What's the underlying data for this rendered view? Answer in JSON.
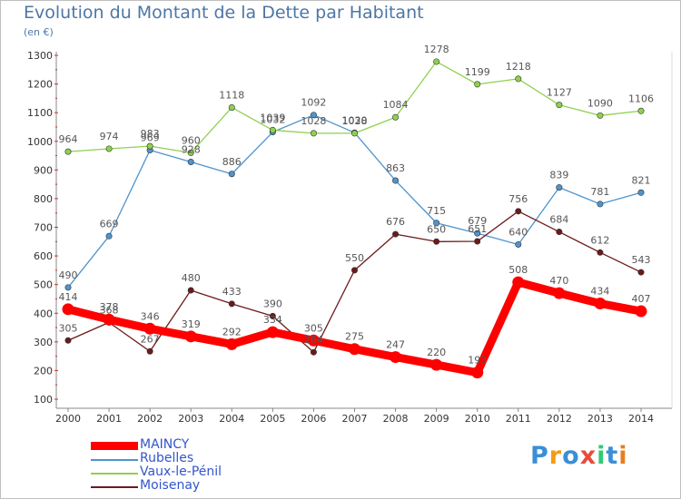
{
  "header": {
    "title": "Evolution du Montant de la Dette par Habitant",
    "subtitle": "(en €)"
  },
  "brand": {
    "letters": [
      "P",
      "r",
      "o",
      "x",
      "i",
      "t",
      "i"
    ],
    "colors": [
      "#3a8fd6",
      "#f39c12",
      "#3a8fd6",
      "#e74c3c",
      "#2ecc71",
      "#3a8fd6",
      "#e67e22"
    ]
  },
  "chart_data": {
    "type": "line",
    "x": [
      "2000",
      "2001",
      "2002",
      "2003",
      "2004",
      "2005",
      "2006",
      "2007",
      "2008",
      "2009",
      "2010",
      "2011",
      "2012",
      "2013",
      "2014"
    ],
    "ylim": [
      100,
      1300
    ],
    "yticks": [
      100,
      200,
      300,
      400,
      500,
      600,
      700,
      800,
      900,
      1000,
      1100,
      1200,
      1300
    ],
    "grid": false,
    "legend_position": "bottom-left",
    "series": [
      {
        "name": "MAINCY",
        "color": "#ff0000",
        "values": [
          414,
          378,
          346,
          319,
          292,
          334,
          305,
          275,
          247,
          220,
          193,
          508,
          470,
          434,
          407
        ]
      },
      {
        "name": "Rubelles",
        "color": "#4f94cd",
        "values": [
          490,
          669,
          969,
          928,
          886,
          1032,
          1092,
          1030,
          863,
          715,
          679,
          640,
          839,
          781,
          821
        ]
      },
      {
        "name": "Vaux-le-Pénil",
        "color": "#8fd14f",
        "values": [
          964,
          974,
          983,
          960,
          1118,
          1039,
          1028,
          1028,
          1084,
          1278,
          1199,
          1218,
          1127,
          1090,
          1106
        ]
      },
      {
        "name": "Moisenay",
        "color": "#6b1a1a",
        "values": [
          305,
          368,
          267,
          480,
          433,
          390,
          264,
          550,
          676,
          650,
          651,
          756,
          684,
          612,
          543
        ]
      }
    ]
  }
}
